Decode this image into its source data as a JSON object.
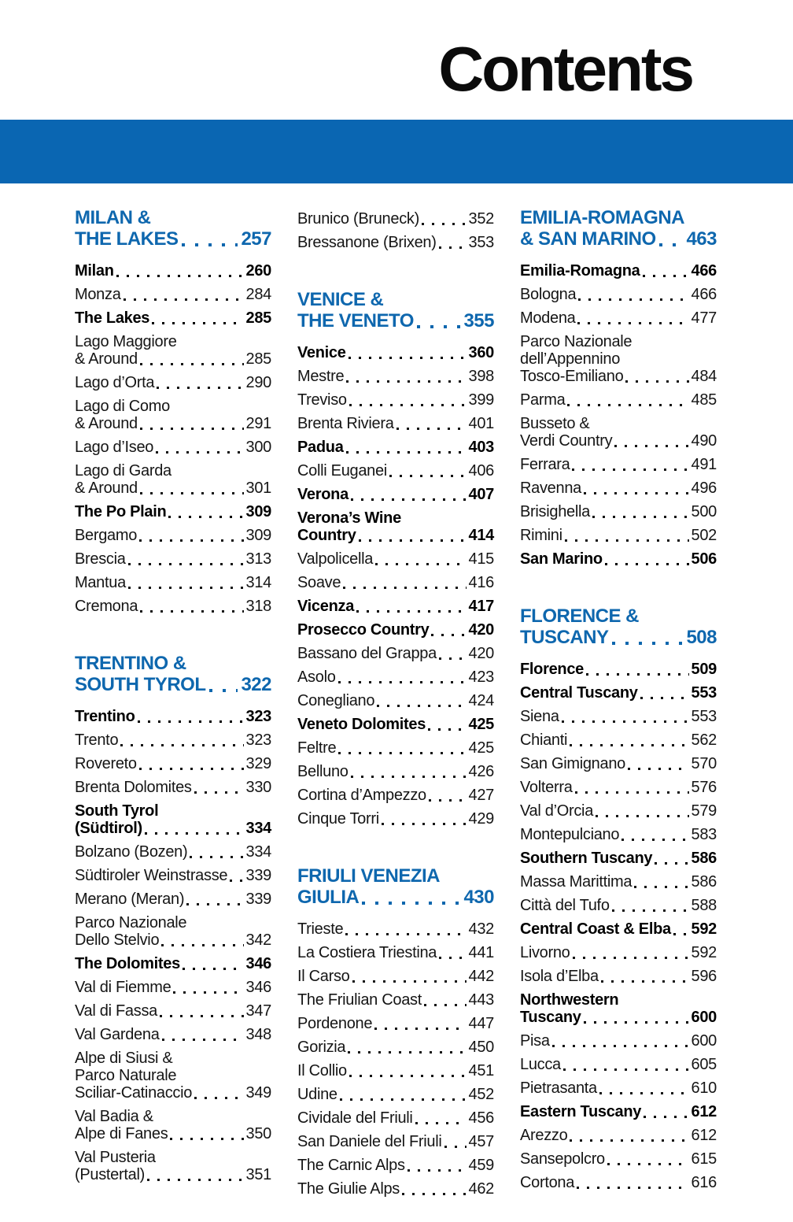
{
  "page_title": "Contents",
  "colors": {
    "band_blue": "#0a66b2",
    "heading_blue": "#0e67ae",
    "text_black": "#111111"
  },
  "columns": [
    {
      "items": [
        {
          "type": "header",
          "lines": [
            "MILAN &",
            "THE LAKES"
          ],
          "page": "257"
        },
        {
          "type": "entry",
          "bold": true,
          "lines": [
            "Milan"
          ],
          "page": "260"
        },
        {
          "type": "entry",
          "bold": false,
          "lines": [
            "Monza"
          ],
          "page": "284"
        },
        {
          "type": "entry",
          "bold": true,
          "lines": [
            "The Lakes"
          ],
          "page": "285"
        },
        {
          "type": "entry",
          "bold": false,
          "lines": [
            "Lago Maggiore",
            "& Around"
          ],
          "page": "285"
        },
        {
          "type": "entry",
          "bold": false,
          "lines": [
            "Lago d’Orta"
          ],
          "page": "290"
        },
        {
          "type": "entry",
          "bold": false,
          "lines": [
            "Lago di Como",
            "& Around"
          ],
          "page": "291"
        },
        {
          "type": "entry",
          "bold": false,
          "lines": [
            "Lago d’Iseo"
          ],
          "page": "300"
        },
        {
          "type": "entry",
          "bold": false,
          "lines": [
            "Lago di Garda",
            "& Around"
          ],
          "page": "301"
        },
        {
          "type": "entry",
          "bold": true,
          "lines": [
            "The Po Plain"
          ],
          "page": "309"
        },
        {
          "type": "entry",
          "bold": false,
          "lines": [
            "Bergamo"
          ],
          "page": "309"
        },
        {
          "type": "entry",
          "bold": false,
          "lines": [
            "Brescia"
          ],
          "page": "313"
        },
        {
          "type": "entry",
          "bold": false,
          "lines": [
            "Mantua"
          ],
          "page": "314"
        },
        {
          "type": "entry",
          "bold": false,
          "lines": [
            "Cremona"
          ],
          "page": "318"
        },
        {
          "type": "header",
          "lines": [
            "TRENTINO &",
            "SOUTH TYROL"
          ],
          "page": "322"
        },
        {
          "type": "entry",
          "bold": true,
          "lines": [
            "Trentino"
          ],
          "page": "323"
        },
        {
          "type": "entry",
          "bold": false,
          "lines": [
            "Trento"
          ],
          "page": "323"
        },
        {
          "type": "entry",
          "bold": false,
          "lines": [
            "Rovereto"
          ],
          "page": "329"
        },
        {
          "type": "entry",
          "bold": false,
          "lines": [
            "Brenta Dolomites"
          ],
          "page": "330"
        },
        {
          "type": "entry",
          "bold": true,
          "lines": [
            "South Tyrol",
            "(Südtirol)"
          ],
          "page": "334"
        },
        {
          "type": "entry",
          "bold": false,
          "lines": [
            "Bolzano (Bozen)"
          ],
          "page": "334"
        },
        {
          "type": "entry",
          "bold": false,
          "lines": [
            "Südtiroler Weinstrasse"
          ],
          "page": "339"
        },
        {
          "type": "entry",
          "bold": false,
          "lines": [
            "Merano (Meran)"
          ],
          "page": "339"
        },
        {
          "type": "entry",
          "bold": false,
          "lines": [
            "Parco Nazionale",
            "Dello Stelvio"
          ],
          "page": "342"
        },
        {
          "type": "entry",
          "bold": true,
          "lines": [
            "The Dolomites"
          ],
          "page": "346"
        },
        {
          "type": "entry",
          "bold": false,
          "lines": [
            "Val di Fiemme"
          ],
          "page": "346"
        },
        {
          "type": "entry",
          "bold": false,
          "lines": [
            "Val di Fassa"
          ],
          "page": "347"
        },
        {
          "type": "entry",
          "bold": false,
          "lines": [
            "Val Gardena"
          ],
          "page": "348"
        },
        {
          "type": "entry",
          "bold": false,
          "lines": [
            "Alpe di Siusi &",
            "Parco Naturale",
            "Sciliar-Catinaccio"
          ],
          "page": "349"
        },
        {
          "type": "entry",
          "bold": false,
          "lines": [
            "Val Badia &",
            "Alpe di Fanes"
          ],
          "page": "350"
        },
        {
          "type": "entry",
          "bold": false,
          "lines": [
            "Val Pusteria",
            "(Pustertal)"
          ],
          "page": "351"
        }
      ]
    },
    {
      "items": [
        {
          "type": "entry",
          "bold": false,
          "lines": [
            "Brunico (Bruneck)"
          ],
          "page": "352"
        },
        {
          "type": "entry",
          "bold": false,
          "lines": [
            "Bressanone (Brixen)"
          ],
          "page": "353"
        },
        {
          "type": "header",
          "lines": [
            "VENICE &",
            "THE VENETO"
          ],
          "page": "355"
        },
        {
          "type": "entry",
          "bold": true,
          "lines": [
            "Venice"
          ],
          "page": "360"
        },
        {
          "type": "entry",
          "bold": false,
          "lines": [
            "Mestre"
          ],
          "page": "398"
        },
        {
          "type": "entry",
          "bold": false,
          "lines": [
            "Treviso"
          ],
          "page": "399"
        },
        {
          "type": "entry",
          "bold": false,
          "lines": [
            "Brenta Riviera"
          ],
          "page": "401"
        },
        {
          "type": "entry",
          "bold": true,
          "lines": [
            "Padua"
          ],
          "page": "403"
        },
        {
          "type": "entry",
          "bold": false,
          "lines": [
            "Colli Euganei"
          ],
          "page": "406"
        },
        {
          "type": "entry",
          "bold": true,
          "lines": [
            "Verona"
          ],
          "page": "407"
        },
        {
          "type": "entry",
          "bold": true,
          "lines": [
            "Verona’s Wine",
            "Country"
          ],
          "page": "414"
        },
        {
          "type": "entry",
          "bold": false,
          "lines": [
            "Valpolicella"
          ],
          "page": "415"
        },
        {
          "type": "entry",
          "bold": false,
          "lines": [
            "Soave"
          ],
          "page": "416"
        },
        {
          "type": "entry",
          "bold": true,
          "lines": [
            "Vicenza"
          ],
          "page": "417"
        },
        {
          "type": "entry",
          "bold": true,
          "lines": [
            "Prosecco Country"
          ],
          "page": "420"
        },
        {
          "type": "entry",
          "bold": false,
          "lines": [
            "Bassano del Grappa"
          ],
          "page": "420"
        },
        {
          "type": "entry",
          "bold": false,
          "lines": [
            "Asolo"
          ],
          "page": "423"
        },
        {
          "type": "entry",
          "bold": false,
          "lines": [
            "Conegliano"
          ],
          "page": "424"
        },
        {
          "type": "entry",
          "bold": true,
          "lines": [
            "Veneto Dolomites"
          ],
          "page": "425"
        },
        {
          "type": "entry",
          "bold": false,
          "lines": [
            "Feltre"
          ],
          "page": "425"
        },
        {
          "type": "entry",
          "bold": false,
          "lines": [
            "Belluno"
          ],
          "page": "426"
        },
        {
          "type": "entry",
          "bold": false,
          "lines": [
            "Cortina d’Ampezzo"
          ],
          "page": "427"
        },
        {
          "type": "entry",
          "bold": false,
          "lines": [
            "Cinque Torri"
          ],
          "page": "429"
        },
        {
          "type": "header",
          "lines": [
            "FRIULI VENEZIA",
            "GIULIA"
          ],
          "page": "430"
        },
        {
          "type": "entry",
          "bold": false,
          "lines": [
            "Trieste"
          ],
          "page": "432"
        },
        {
          "type": "entry",
          "bold": false,
          "lines": [
            "La Costiera Triestina"
          ],
          "page": "441"
        },
        {
          "type": "entry",
          "bold": false,
          "lines": [
            "Il Carso"
          ],
          "page": "442"
        },
        {
          "type": "entry",
          "bold": false,
          "lines": [
            "The Friulian Coast"
          ],
          "page": "443"
        },
        {
          "type": "entry",
          "bold": false,
          "lines": [
            "Pordenone"
          ],
          "page": "447"
        },
        {
          "type": "entry",
          "bold": false,
          "lines": [
            "Gorizia"
          ],
          "page": "450"
        },
        {
          "type": "entry",
          "bold": false,
          "lines": [
            "Il Collio"
          ],
          "page": "451"
        },
        {
          "type": "entry",
          "bold": false,
          "lines": [
            "Udine"
          ],
          "page": "452"
        },
        {
          "type": "entry",
          "bold": false,
          "lines": [
            "Cividale del Friuli"
          ],
          "page": "456"
        },
        {
          "type": "entry",
          "bold": false,
          "lines": [
            "San Daniele del Friuli"
          ],
          "page": "457"
        },
        {
          "type": "entry",
          "bold": false,
          "lines": [
            "The Carnic Alps"
          ],
          "page": "459"
        },
        {
          "type": "entry",
          "bold": false,
          "lines": [
            "The Giulie Alps"
          ],
          "page": "462"
        }
      ]
    },
    {
      "items": [
        {
          "type": "header",
          "lines": [
            "EMILIA-ROMAGNA",
            "& SAN MARINO"
          ],
          "page": "463"
        },
        {
          "type": "entry",
          "bold": true,
          "lines": [
            "Emilia-Romagna"
          ],
          "page": "466"
        },
        {
          "type": "entry",
          "bold": false,
          "lines": [
            "Bologna"
          ],
          "page": "466"
        },
        {
          "type": "entry",
          "bold": false,
          "lines": [
            "Modena"
          ],
          "page": "477"
        },
        {
          "type": "entry",
          "bold": false,
          "lines": [
            "Parco Nazionale",
            "dell’Appennino",
            "Tosco-Emiliano"
          ],
          "page": "484"
        },
        {
          "type": "entry",
          "bold": false,
          "lines": [
            "Parma"
          ],
          "page": "485"
        },
        {
          "type": "entry",
          "bold": false,
          "lines": [
            "Busseto &",
            "Verdi Country"
          ],
          "page": "490"
        },
        {
          "type": "entry",
          "bold": false,
          "lines": [
            "Ferrara"
          ],
          "page": "491"
        },
        {
          "type": "entry",
          "bold": false,
          "lines": [
            "Ravenna"
          ],
          "page": "496"
        },
        {
          "type": "entry",
          "bold": false,
          "lines": [
            "Brisighella"
          ],
          "page": "500"
        },
        {
          "type": "entry",
          "bold": false,
          "lines": [
            "Rimini"
          ],
          "page": "502"
        },
        {
          "type": "entry",
          "bold": true,
          "lines": [
            "San Marino"
          ],
          "page": "506"
        },
        {
          "type": "header",
          "lines": [
            "FLORENCE &",
            "TUSCANY"
          ],
          "page": "508"
        },
        {
          "type": "entry",
          "bold": true,
          "lines": [
            "Florence"
          ],
          "page": "509"
        },
        {
          "type": "entry",
          "bold": true,
          "lines": [
            "Central Tuscany"
          ],
          "page": "553"
        },
        {
          "type": "entry",
          "bold": false,
          "lines": [
            "Siena"
          ],
          "page": "553"
        },
        {
          "type": "entry",
          "bold": false,
          "lines": [
            "Chianti"
          ],
          "page": "562"
        },
        {
          "type": "entry",
          "bold": false,
          "lines": [
            "San Gimignano"
          ],
          "page": "570"
        },
        {
          "type": "entry",
          "bold": false,
          "lines": [
            "Volterra"
          ],
          "page": "576"
        },
        {
          "type": "entry",
          "bold": false,
          "lines": [
            "Val d’Orcia"
          ],
          "page": "579"
        },
        {
          "type": "entry",
          "bold": false,
          "lines": [
            "Montepulciano"
          ],
          "page": "583"
        },
        {
          "type": "entry",
          "bold": true,
          "lines": [
            "Southern Tuscany"
          ],
          "page": "586"
        },
        {
          "type": "entry",
          "bold": false,
          "lines": [
            "Massa Marittima"
          ],
          "page": "586"
        },
        {
          "type": "entry",
          "bold": false,
          "lines": [
            "Città del Tufo"
          ],
          "page": "588"
        },
        {
          "type": "entry",
          "bold": true,
          "lines": [
            "Central Coast & Elba"
          ],
          "page": "592"
        },
        {
          "type": "entry",
          "bold": false,
          "lines": [
            "Livorno"
          ],
          "page": "592"
        },
        {
          "type": "entry",
          "bold": false,
          "lines": [
            "Isola d’Elba"
          ],
          "page": "596"
        },
        {
          "type": "entry",
          "bold": true,
          "lines": [
            "Northwestern",
            "Tuscany"
          ],
          "page": "600"
        },
        {
          "type": "entry",
          "bold": false,
          "lines": [
            "Pisa"
          ],
          "page": "600"
        },
        {
          "type": "entry",
          "bold": false,
          "lines": [
            "Lucca"
          ],
          "page": "605"
        },
        {
          "type": "entry",
          "bold": false,
          "lines": [
            "Pietrasanta"
          ],
          "page": "610"
        },
        {
          "type": "entry",
          "bold": true,
          "lines": [
            "Eastern Tuscany"
          ],
          "page": "612"
        },
        {
          "type": "entry",
          "bold": false,
          "lines": [
            "Arezzo"
          ],
          "page": "612"
        },
        {
          "type": "entry",
          "bold": false,
          "lines": [
            "Sansepolcro"
          ],
          "page": "615"
        },
        {
          "type": "entry",
          "bold": false,
          "lines": [
            "Cortona"
          ],
          "page": "616"
        }
      ]
    }
  ]
}
